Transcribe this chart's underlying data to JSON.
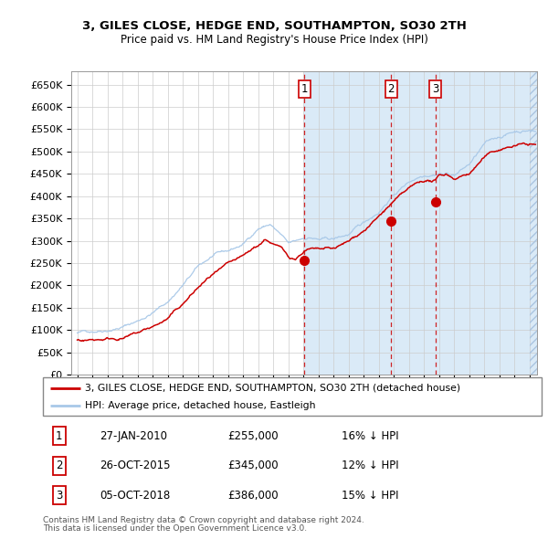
{
  "title": "3, GILES CLOSE, HEDGE END, SOUTHAMPTON, SO30 2TH",
  "subtitle": "Price paid vs. HM Land Registry's House Price Index (HPI)",
  "hpi_color": "#a8c8e8",
  "price_color": "#cc0000",
  "purchases": [
    {
      "date_num": 2010.07,
      "price": 255000,
      "label": "1"
    },
    {
      "date_num": 2015.82,
      "price": 345000,
      "label": "2"
    },
    {
      "date_num": 2018.76,
      "price": 386000,
      "label": "3"
    }
  ],
  "purchase_dates_str": [
    "27-JAN-2010",
    "26-OCT-2015",
    "05-OCT-2018"
  ],
  "purchase_prices_str": [
    "£255,000",
    "£345,000",
    "£386,000"
  ],
  "purchase_hpi_str": [
    "16% ↓ HPI",
    "12% ↓ HPI",
    "15% ↓ HPI"
  ],
  "ylim": [
    0,
    680000
  ],
  "xlim_start": 1994.6,
  "xlim_end": 2025.5,
  "ylabel_ticks": [
    0,
    50000,
    100000,
    150000,
    200000,
    250000,
    300000,
    350000,
    400000,
    450000,
    500000,
    550000,
    600000,
    650000
  ],
  "legend_line1": "3, GILES CLOSE, HEDGE END, SOUTHAMPTON, SO30 2TH (detached house)",
  "legend_line2": "HPI: Average price, detached house, Eastleigh",
  "footnote1": "Contains HM Land Registry data © Crown copyright and database right 2024.",
  "footnote2": "This data is licensed under the Open Government Licence v3.0."
}
